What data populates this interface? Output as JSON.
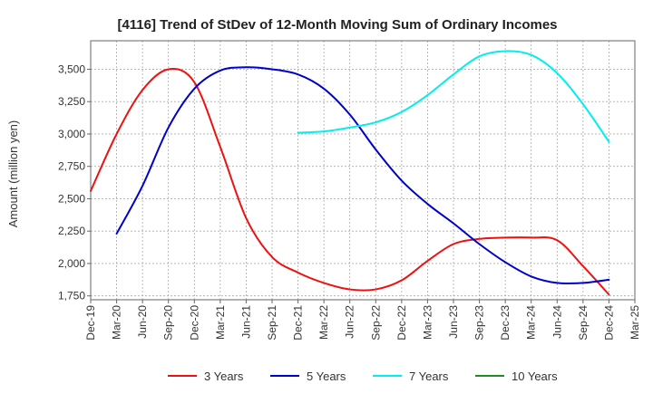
{
  "chart_data": {
    "type": "line",
    "title": "[4116]  Trend of StDev of 12-Month Moving Sum of Ordinary Incomes",
    "xlabel": "",
    "ylabel": "Amount (million yen)",
    "ylim": [
      1720,
      3720
    ],
    "y_ticks": [
      1750,
      2000,
      2250,
      2500,
      2750,
      3000,
      3250,
      3500
    ],
    "y_tick_labels": [
      "1,750",
      "2,000",
      "2,250",
      "2,500",
      "2,750",
      "3,000",
      "3,250",
      "3,500"
    ],
    "x_ticks": [
      "Dec-19",
      "Mar-20",
      "Jun-20",
      "Sep-20",
      "Dec-20",
      "Mar-21",
      "Jun-21",
      "Sep-21",
      "Dec-21",
      "Mar-22",
      "Jun-22",
      "Sep-22",
      "Dec-22",
      "Mar-23",
      "Jun-23",
      "Sep-23",
      "Dec-23",
      "Mar-24",
      "Jun-24",
      "Sep-24",
      "Dec-24",
      "Mar-25"
    ],
    "grid": true,
    "legend_position": "bottom",
    "series": [
      {
        "name": "3 Years",
        "color": "#ee1111",
        "x": [
          0,
          1,
          2,
          3,
          4,
          5,
          6,
          7,
          8,
          9,
          10,
          11,
          12,
          13,
          14,
          15,
          16,
          17,
          18,
          19,
          20
        ],
        "values": [
          2560,
          3000,
          3340,
          3500,
          3400,
          2900,
          2350,
          2050,
          1930,
          1850,
          1800,
          1800,
          1870,
          2020,
          2150,
          2190,
          2200,
          2200,
          2180,
          1980,
          1760
        ]
      },
      {
        "name": "5 Years",
        "color": "#0000cc",
        "x": [
          1,
          2,
          3,
          4,
          5,
          6,
          7,
          8,
          9,
          10,
          11,
          12,
          13,
          14,
          15,
          16,
          17,
          18,
          19,
          20
        ],
        "values": [
          2230,
          2600,
          3050,
          3350,
          3490,
          3515,
          3500,
          3460,
          3350,
          3150,
          2880,
          2640,
          2460,
          2310,
          2150,
          2010,
          1900,
          1850,
          1850,
          1875
        ]
      },
      {
        "name": "7 Years",
        "color": "#00eeee",
        "x": [
          8,
          9,
          10,
          11,
          12,
          13,
          14,
          15,
          16,
          17,
          18,
          19,
          20
        ],
        "values": [
          3010,
          3020,
          3050,
          3090,
          3170,
          3300,
          3460,
          3600,
          3640,
          3610,
          3470,
          3230,
          2940
        ]
      },
      {
        "name": "10 Years",
        "color": "#228b22",
        "x": [],
        "values": []
      }
    ]
  }
}
